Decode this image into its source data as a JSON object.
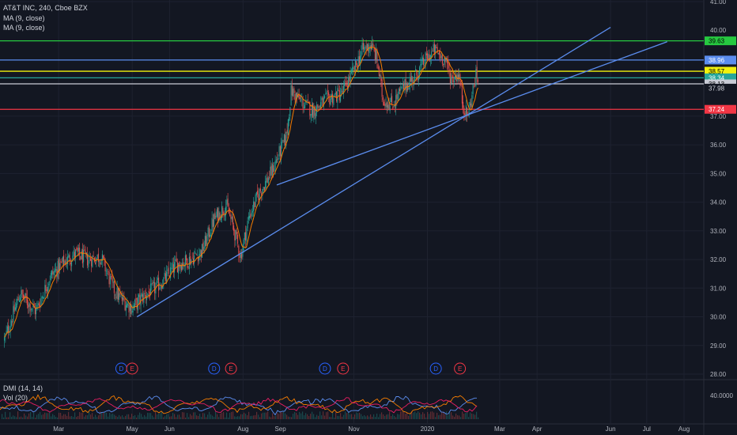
{
  "header": {
    "symbol_line": "AT&T INC, 240, Cboe BZX",
    "ma1": "MA (9, close)",
    "ma2": "MA (9, close)"
  },
  "indicator": {
    "dmi_label": "DMI (14, 14)",
    "vol_label": "Vol (20)",
    "right_value": "40.0000"
  },
  "colors": {
    "background": "#131722",
    "candle_up": "#26a69a",
    "candle_down": "#ef5350",
    "ma": "#f57c00",
    "trendline": "#5b8def",
    "grid": "#1e2230"
  },
  "chart_data": {
    "type": "candlestick",
    "x_tick_labels": [
      "Mar",
      "May",
      "Jun",
      "Aug",
      "Sep",
      "Nov",
      "2020",
      "Mar",
      "Apr",
      "Jun",
      "Jul",
      "Aug"
    ],
    "y_tick_labels": [
      "28.00",
      "29.00",
      "30.00",
      "31.00",
      "32.00",
      "33.00",
      "34.00",
      "35.00",
      "36.00",
      "37.00",
      "41.00"
    ],
    "ylim": [
      27.8,
      41.0
    ],
    "close_path": [
      [
        "2019-01-15",
        29.2
      ],
      [
        "2019-01-28",
        30.8
      ],
      [
        "2019-02-10",
        30.2
      ],
      [
        "2019-02-22",
        31.4
      ],
      [
        "2019-03-05",
        31.9
      ],
      [
        "2019-03-15",
        32.2
      ],
      [
        "2019-03-25",
        32.0
      ],
      [
        "2019-04-05",
        32.1
      ],
      [
        "2019-04-15",
        31.0
      ],
      [
        "2019-04-22",
        30.6
      ],
      [
        "2019-05-01",
        30.3
      ],
      [
        "2019-05-10",
        30.7
      ],
      [
        "2019-05-20",
        31.0
      ],
      [
        "2019-05-28",
        31.3
      ],
      [
        "2019-06-06",
        31.8
      ],
      [
        "2019-06-18",
        32.0
      ],
      [
        "2019-06-28",
        32.3
      ],
      [
        "2019-07-08",
        33.4
      ],
      [
        "2019-07-18",
        33.9
      ],
      [
        "2019-07-24",
        33.1
      ],
      [
        "2019-07-30",
        32.1
      ],
      [
        "2019-08-06",
        33.5
      ],
      [
        "2019-08-14",
        34.3
      ],
      [
        "2019-08-24",
        35.0
      ],
      [
        "2019-08-30",
        35.6
      ],
      [
        "2019-09-06",
        36.3
      ],
      [
        "2019-09-10",
        37.9
      ],
      [
        "2019-09-18",
        37.5
      ],
      [
        "2019-09-28",
        37.2
      ],
      [
        "2019-10-10",
        37.6
      ],
      [
        "2019-10-22",
        37.8
      ],
      [
        "2019-11-01",
        38.6
      ],
      [
        "2019-11-08",
        39.3
      ],
      [
        "2019-11-15",
        39.5
      ],
      [
        "2019-11-20",
        39.0
      ],
      [
        "2019-11-25",
        37.6
      ],
      [
        "2019-12-03",
        37.4
      ],
      [
        "2019-12-12",
        38.0
      ],
      [
        "2019-12-22",
        38.4
      ],
      [
        "2019-12-31",
        39.0
      ],
      [
        "2020-01-07",
        39.3
      ],
      [
        "2020-01-15",
        39.0
      ],
      [
        "2020-01-21",
        38.3
      ],
      [
        "2020-01-27",
        38.5
      ],
      [
        "2020-01-30",
        37.5
      ],
      [
        "2020-02-03",
        37.0
      ],
      [
        "2020-02-06",
        37.5
      ],
      [
        "2020-02-10",
        38.4
      ],
      [
        "2020-02-12",
        38.3
      ]
    ],
    "series": [
      {
        "name": "",
        "values": []
      }
    ],
    "horizontal_levels": [
      {
        "price": 39.63,
        "label": "39.63",
        "color": "#26c940",
        "label_fill": "#26c940",
        "label_text": "#000000"
      },
      {
        "price": 38.96,
        "label": "38.96",
        "color": "#5b8def",
        "label_fill": "#5b8def",
        "label_text": "#ffffff"
      },
      {
        "price": 38.57,
        "label": "38.57",
        "color": "#f2f20c",
        "label_fill": "#f2f20c",
        "label_text": "#000000"
      },
      {
        "price": 38.34,
        "label": "38.34",
        "color": "#26a69a",
        "label_fill": "#26a69a",
        "label_text": "#ffffff"
      },
      {
        "price": 38.13,
        "label": "38.13",
        "color": "#c9ccd6",
        "label_fill": "#c9ccd6",
        "label_text": "#000000"
      },
      {
        "price": 37.98,
        "label": "37.98",
        "color": "#131722",
        "label_fill": "#131722",
        "label_text": "#d1d4dc"
      },
      {
        "price": 37.24,
        "label": "37.24",
        "color": "#f23645",
        "label_fill": "#f23645",
        "label_text": "#ffffff"
      }
    ],
    "right_axis_extra": [
      {
        "price": 40.0,
        "label": "40.00"
      }
    ],
    "trendlines": [
      {
        "from": [
          "2019-05-05",
          30.0
        ],
        "to": [
          "2020-06-01",
          40.1
        ]
      },
      {
        "from": [
          "2019-08-29",
          34.6
        ],
        "to": [
          "2020-07-18",
          39.6
        ]
      }
    ],
    "event_markers": [
      {
        "date": "2019-04-22",
        "letter": "D",
        "kind": "dividend"
      },
      {
        "date": "2019-05-01",
        "letter": "E",
        "kind": "earnings"
      },
      {
        "date": "2019-07-08",
        "letter": "D",
        "kind": "dividend"
      },
      {
        "date": "2019-07-22",
        "letter": "E",
        "kind": "earnings"
      },
      {
        "date": "2019-10-08",
        "letter": "D",
        "kind": "dividend"
      },
      {
        "date": "2019-10-23",
        "letter": "E",
        "kind": "earnings"
      },
      {
        "date": "2020-01-08",
        "letter": "D",
        "kind": "dividend"
      },
      {
        "date": "2020-01-28",
        "letter": "E",
        "kind": "earnings"
      }
    ]
  }
}
